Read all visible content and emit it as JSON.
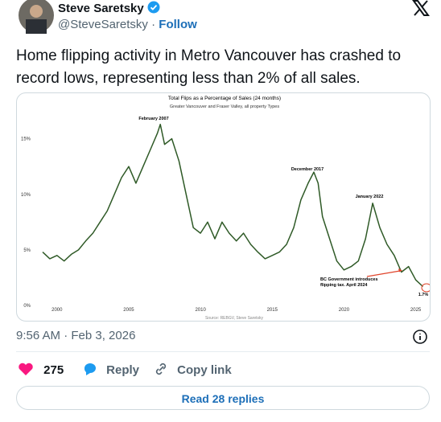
{
  "tweet": {
    "name": "Steve Saretsky",
    "handle": "@SteveSaretsky",
    "separator": "·",
    "follow": "Follow",
    "text": "Home flipping activity in Metro Vancouver has crashed to record lows, representing less than 2% of all sales.",
    "timestamp": "9:56 AM · Feb 3, 2026",
    "likes": "275",
    "reply": "Reply",
    "copy_link": "Copy link",
    "read_replies": "Read 28 replies"
  },
  "chart_data": {
    "type": "line",
    "title": "Total Flips as a Percentage of Sales (24 months)",
    "subtitle": "Greater Vancouver and Fraser Valley, all property Types",
    "source": "Source: REBGV, Steve Saretsky",
    "annotations": [
      "February 2007",
      "December 2017",
      "January 2022",
      "BC Government introduces",
      "flipping tax. April 2024",
      "1.7%"
    ],
    "color": "#2f5a27",
    "x": [
      1999.0,
      1999.5,
      2000.0,
      2000.5,
      2001.0,
      2001.5,
      2002.0,
      2002.5,
      2003.0,
      2003.5,
      2004.0,
      2004.5,
      2005.0,
      2005.5,
      2006.0,
      2006.5,
      2007.0,
      2007.2,
      2007.5,
      2008.0,
      2008.5,
      2009.0,
      2009.5,
      2010.0,
      2010.5,
      2011.0,
      2011.5,
      2012.0,
      2012.5,
      2013.0,
      2013.5,
      2014.0,
      2014.5,
      2015.0,
      2015.5,
      2016.0,
      2016.5,
      2017.0,
      2017.5,
      2017.9,
      2018.2,
      2018.5,
      2019.0,
      2019.5,
      2020.0,
      2020.5,
      2021.0,
      2021.5,
      2022.0,
      2022.5,
      2023.0,
      2023.5,
      2024.0,
      2024.5,
      2025.0,
      2025.5
    ],
    "values": [
      4.8,
      4.2,
      4.5,
      4.0,
      4.6,
      5.0,
      5.8,
      6.5,
      7.5,
      8.5,
      10.0,
      11.5,
      12.5,
      11.0,
      12.5,
      14.0,
      15.5,
      16.3,
      14.5,
      15.0,
      13.0,
      10.0,
      7.0,
      6.5,
      7.5,
      6.0,
      7.5,
      6.5,
      5.8,
      6.5,
      5.5,
      4.8,
      4.2,
      4.5,
      4.8,
      5.5,
      7.0,
      9.5,
      11.0,
      12.0,
      11.0,
      8.0,
      6.0,
      4.0,
      3.2,
      3.5,
      4.0,
      6.0,
      9.2,
      7.0,
      5.5,
      4.5,
      3.0,
      3.5,
      2.3,
      1.7
    ],
    "xlim": [
      1997.6,
      2026.2
    ],
    "ylim": [
      0,
      17
    ],
    "xticks": [
      2000,
      2005,
      2010,
      2015,
      2020,
      2025
    ],
    "yticks": [
      {
        "value": 0,
        "label": "0%"
      },
      {
        "value": 5,
        "label": "5%"
      },
      {
        "value": 10,
        "label": "10%"
      },
      {
        "value": 15,
        "label": "15%"
      }
    ]
  }
}
